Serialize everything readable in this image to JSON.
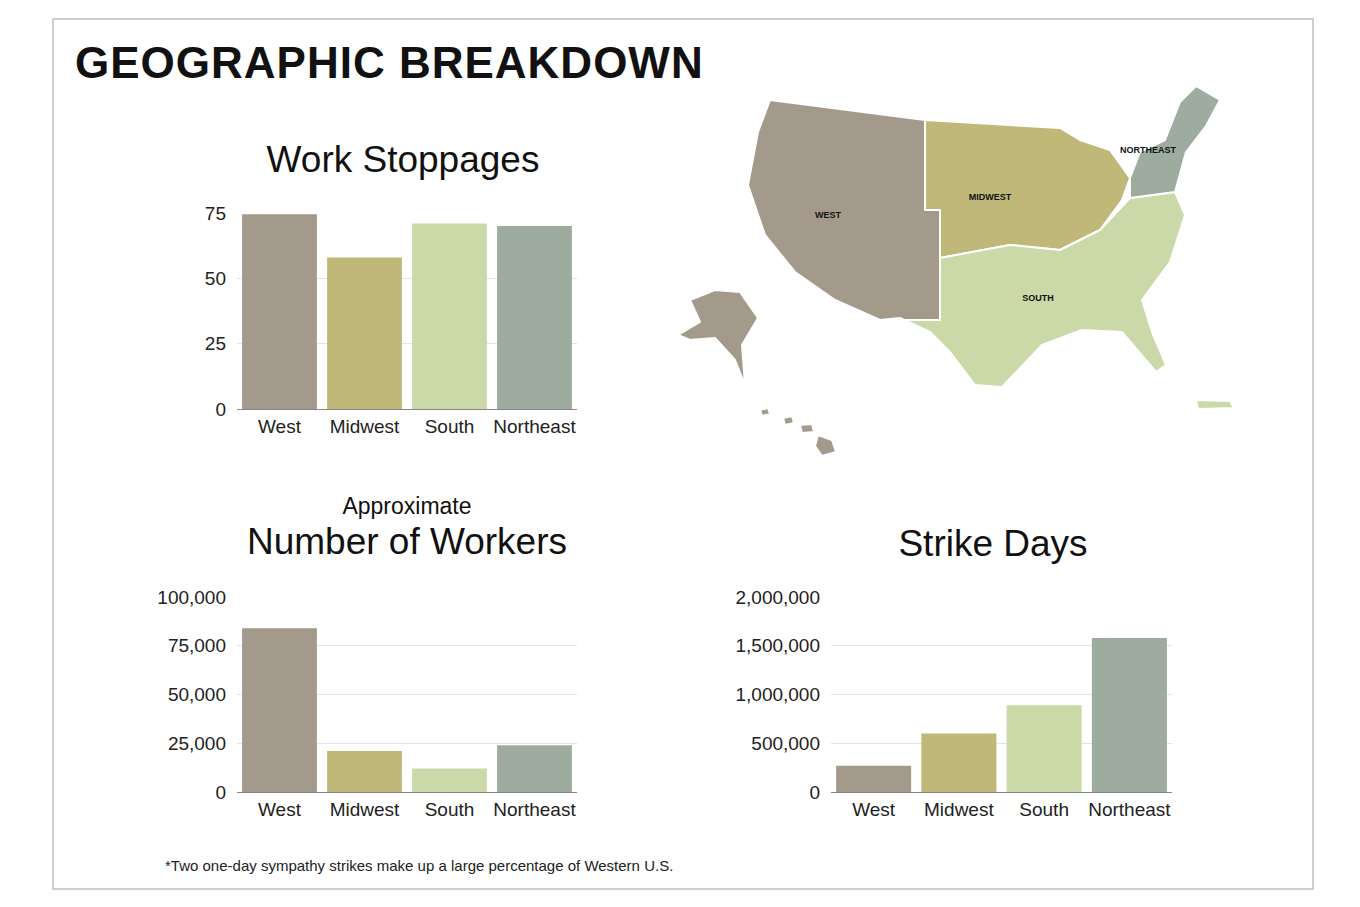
{
  "title": "GEOGRAPHIC BREAKDOWN",
  "map": {
    "labels": [
      "WEST",
      "MIDWEST",
      "SOUTH",
      "NORTHEAST"
    ]
  },
  "chart_data": [
    {
      "type": "bar",
      "title": "Work Stoppages",
      "categories": [
        "West",
        "Midwest",
        "South",
        "Northeast"
      ],
      "values": [
        74.5,
        58,
        71,
        70
      ],
      "colors": [
        "#a39a8b",
        "#c0b878",
        "#cad9a7",
        "#9dac9e"
      ],
      "ylim": [
        0,
        75
      ],
      "yticks": [
        0,
        25,
        50,
        75
      ],
      "grid": true
    },
    {
      "type": "bar",
      "subtitle": "Approximate",
      "title": "Number of Workers",
      "categories": [
        "West",
        "Midwest",
        "South",
        "Northeast"
      ],
      "values": [
        84000,
        21000,
        12000,
        24000
      ],
      "colors": [
        "#a39a8b",
        "#c0b878",
        "#cad9a7",
        "#9dac9e"
      ],
      "ylim": [
        0,
        100000
      ],
      "yticks": [
        0,
        {
          "value": 25000,
          "label": "25,000"
        },
        {
          "value": 50000,
          "label": "50,000"
        },
        {
          "value": 75000,
          "label": "75,000"
        },
        {
          "value": 100000,
          "label": "100,000"
        }
      ],
      "grid": true
    },
    {
      "type": "bar",
      "title": "Strike Days",
      "categories": [
        "West",
        "Midwest",
        "South",
        "Northeast"
      ],
      "values": [
        270000,
        600000,
        890000,
        1580000
      ],
      "colors": [
        "#a39a8b",
        "#c0b878",
        "#cad9a7",
        "#9dac9e"
      ],
      "ylim": [
        0,
        2000000
      ],
      "yticks": [
        0,
        {
          "value": 500000,
          "label": "500,000"
        },
        {
          "value": 1000000,
          "label": "1,000,000"
        },
        {
          "value": 1500000,
          "label": "1,500,000"
        },
        {
          "value": 2000000,
          "label": "2,000,000"
        }
      ],
      "grid": true
    }
  ],
  "footnote": "*Two one-day sympathy strikes make up a large percentage of Western U.S."
}
